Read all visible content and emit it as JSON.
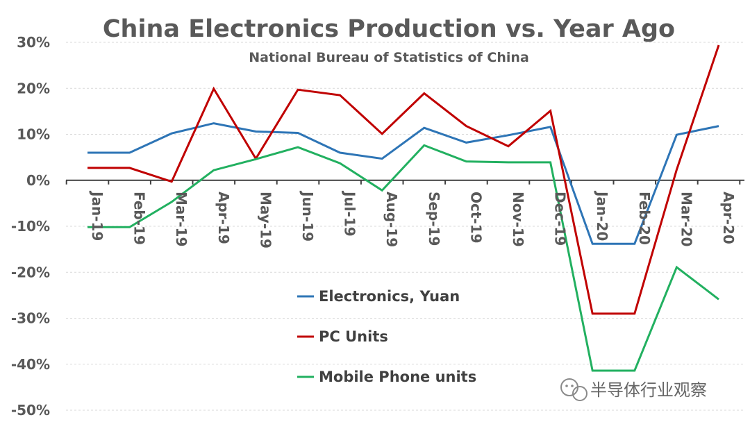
{
  "chart_data": {
    "type": "line",
    "title": "China Electronics Production vs. Year Ago",
    "subtitle": "National Bureau of Statistics of China",
    "categories": [
      "Jan-19",
      "Feb-19",
      "Mar-19",
      "Apr-19",
      "May-19",
      "Jun-19",
      "Jul-19",
      "Aug-19",
      "Sep-19",
      "Oct-19",
      "Nov-19",
      "Dec-19",
      "Jan-20",
      "Feb-20",
      "Mar-20",
      "Apr-20"
    ],
    "ylim": [
      -50,
      30
    ],
    "yticks": [
      "30%",
      "20%",
      "10%",
      "0%",
      "-10%",
      "-20%",
      "-30%",
      "-40%",
      "-50%"
    ],
    "ytick_values": [
      30,
      20,
      10,
      0,
      -10,
      -20,
      -30,
      -40,
      -50
    ],
    "grid": true,
    "legend_position": "bottom-center",
    "series": [
      {
        "name": "Electronics, Yuan",
        "color": "#2e75b6",
        "values": [
          6.0,
          6.0,
          10.2,
          12.4,
          10.6,
          10.3,
          6.0,
          4.7,
          11.4,
          8.2,
          9.8,
          11.6,
          -13.8,
          -13.8,
          9.9,
          11.8
        ]
      },
      {
        "name": "PC Units",
        "color": "#c00000",
        "values": [
          2.7,
          2.7,
          -0.3,
          19.9,
          4.7,
          19.7,
          18.5,
          10.1,
          18.9,
          11.8,
          7.4,
          15.1,
          -29.0,
          -29.0,
          2.3,
          29.4
        ]
      },
      {
        "name": "Mobile Phone units",
        "color": "#22b060",
        "values": [
          -10.2,
          -10.2,
          -4.7,
          2.2,
          4.6,
          7.2,
          3.7,
          -2.2,
          7.6,
          4.1,
          3.9,
          3.9,
          -41.4,
          -41.4,
          -18.9,
          -25.9
        ]
      }
    ]
  },
  "watermark": {
    "text": "半导体行业观察",
    "icon": "wechat-icon"
  }
}
